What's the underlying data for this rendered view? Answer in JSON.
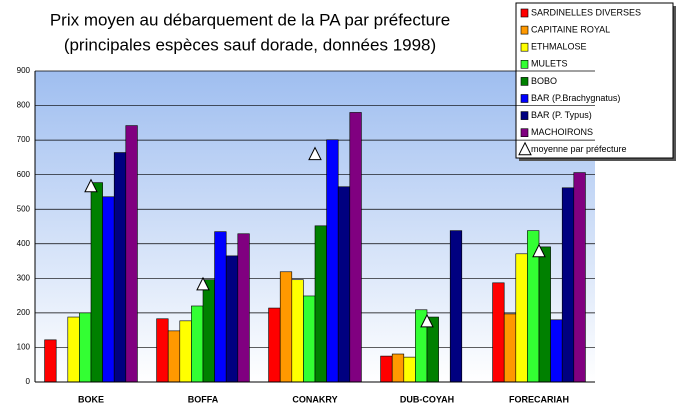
{
  "chart_data": {
    "type": "bar",
    "title": "Prix moyen au débarquement de la PA par préfecture",
    "subtitle": "(principales espèces sauf dorade, données 1998)",
    "categories": [
      "BOKE",
      "BOFFA",
      "CONAKRY",
      "DUB-COYAH",
      "FORECARIAH"
    ],
    "series": [
      {
        "name": "SARDINELLES DIVERSES",
        "color": "#ff0000",
        "values": [
          122,
          183,
          214,
          75,
          287
        ]
      },
      {
        "name": "CAPITAINE ROYAL",
        "color": "#ff9900",
        "values": [
          null,
          148,
          319,
          81,
          197
        ]
      },
      {
        "name": "ETHMALOSE",
        "color": "#ffff00",
        "values": [
          188,
          177,
          296,
          72,
          371
        ]
      },
      {
        "name": "MULETS",
        "color": "#33ff33",
        "values": [
          200,
          220,
          249,
          209,
          438
        ]
      },
      {
        "name": "BOBO",
        "color": "#008000",
        "values": [
          577,
          296,
          452,
          188,
          391
        ]
      },
      {
        "name": "BAR (P.Brachygnatus)",
        "color": "#0000ff",
        "values": [
          536,
          435,
          701,
          null,
          180
        ]
      },
      {
        "name": "BAR (P. Typus)",
        "color": "#000080",
        "values": [
          664,
          365,
          565,
          438,
          562
        ]
      },
      {
        "name": "MACHOIRONS",
        "color": "#800080",
        "values": [
          742,
          429,
          780,
          null,
          606
        ]
      },
      {
        "name": "moyenne par préfecture",
        "color": "#ffffff",
        "marker": "triangle",
        "values": [
          565,
          281,
          658,
          174,
          377
        ]
      }
    ],
    "ylim": [
      0,
      900
    ],
    "yticks": [
      0,
      100,
      200,
      300,
      400,
      500,
      600,
      700,
      800,
      900
    ],
    "grid": true,
    "legend": "top-right"
  }
}
